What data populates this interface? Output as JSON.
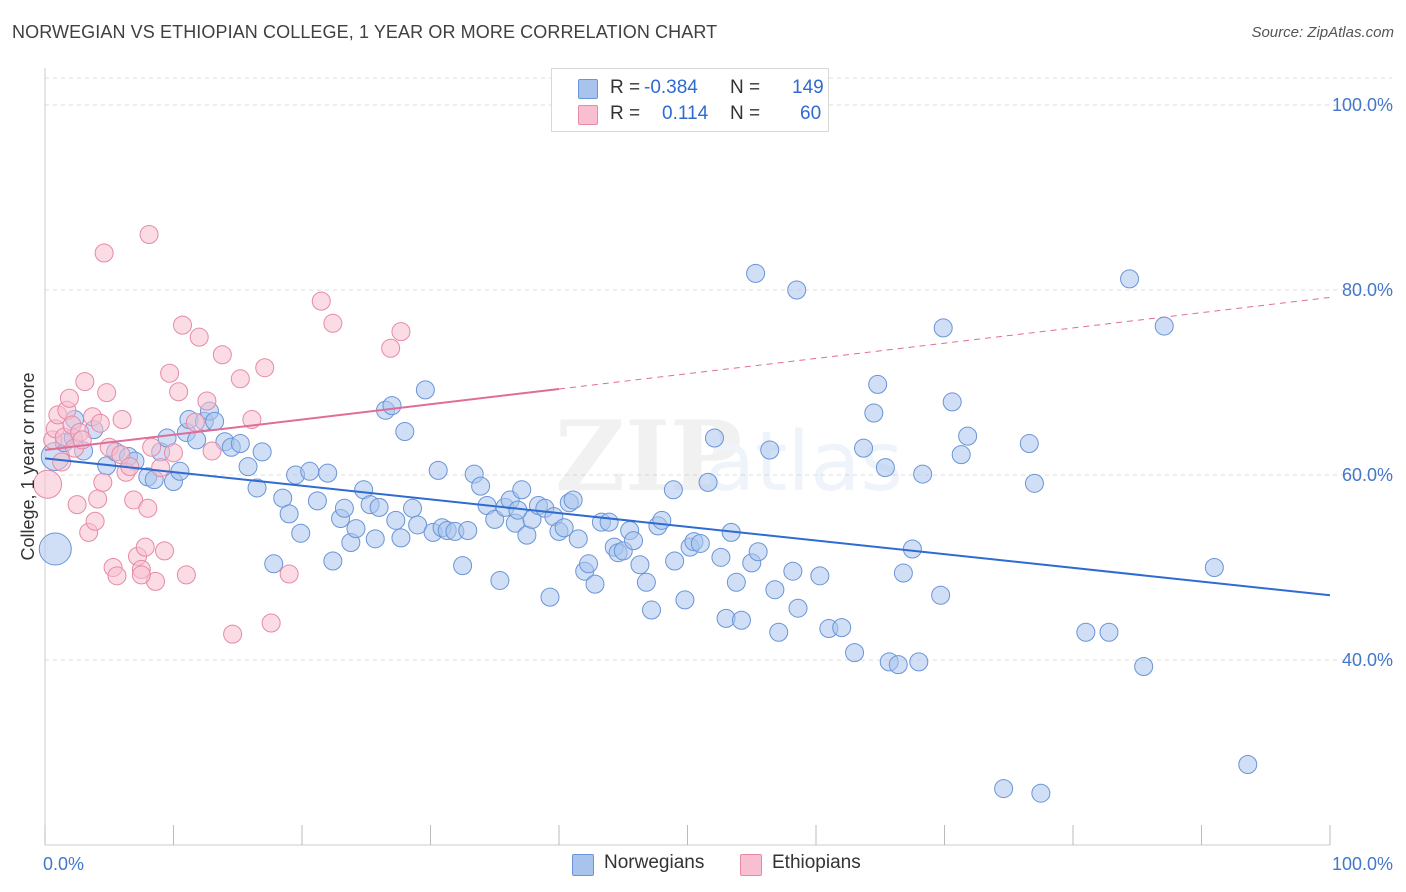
{
  "title": "NORWEGIAN VS ETHIOPIAN COLLEGE, 1 YEAR OR MORE CORRELATION CHART",
  "source": "Source: ZipAtlas.com",
  "watermark": {
    "zip": "ZIP",
    "atlas": "atlas"
  },
  "legend_stats": [
    {
      "r_label": "R =",
      "r_value": "-0.384",
      "n_label": "N =",
      "n_value": "149",
      "color": "#a9c4ec",
      "border": "#6a95d8"
    },
    {
      "r_label": "R =",
      "r_value": "0.114",
      "n_label": "N =",
      "n_value": "60",
      "color": "#f7bfd0",
      "border": "#e68aa6"
    }
  ],
  "bottom_legend": [
    {
      "label": "Norwegians",
      "color": "#a9c4ec",
      "border": "#6a95d8"
    },
    {
      "label": "Ethiopians",
      "color": "#f7bfd0",
      "border": "#e68aa6"
    }
  ],
  "chart_data": {
    "type": "scatter",
    "title": "NORWEGIAN VS ETHIOPIAN COLLEGE, 1 YEAR OR MORE CORRELATION CHART",
    "xlabel": "",
    "ylabel": "College, 1 year or more",
    "xlim": [
      0,
      100
    ],
    "ylim": [
      20,
      104
    ],
    "x_tick_labels": [
      "0.0%",
      "100.0%"
    ],
    "y_ticks": [
      40,
      60,
      80,
      100
    ],
    "y_tick_labels": [
      "40.0%",
      "60.0%",
      "80.0%",
      "100.0%"
    ],
    "grid": true,
    "series": [
      {
        "name": "Norwegians",
        "color": "#a9c4ec",
        "edge": "#6a95d8",
        "trend": {
          "x0": 0,
          "y0": 61.8,
          "x1": 100,
          "y1": 47.0,
          "color": "#2f6bd0",
          "dashed_from": null
        },
        "points": [
          [
            0.8,
            62.0,
            14
          ],
          [
            0.8,
            52.0,
            16
          ],
          [
            1.5,
            63.5,
            9
          ],
          [
            2.2,
            64.0,
            9
          ],
          [
            2.3,
            66.0,
            9
          ],
          [
            3.0,
            62.6,
            9
          ],
          [
            3.8,
            64.9,
            9
          ],
          [
            4.8,
            61.0,
            9
          ],
          [
            5.5,
            62.5,
            9
          ],
          [
            6.5,
            62.0,
            9
          ],
          [
            7.0,
            61.5,
            9
          ],
          [
            8.0,
            59.8,
            9
          ],
          [
            8.5,
            59.5,
            9
          ],
          [
            9.0,
            62.5,
            9
          ],
          [
            9.5,
            64.0,
            9
          ],
          [
            10.0,
            59.3,
            9
          ],
          [
            10.5,
            60.4,
            9
          ],
          [
            11.0,
            64.6,
            9
          ],
          [
            11.2,
            66.0,
            9
          ],
          [
            11.8,
            63.8,
            9
          ],
          [
            12.4,
            65.8,
            9
          ],
          [
            12.8,
            66.9,
            9
          ],
          [
            13.2,
            65.8,
            9
          ],
          [
            14.0,
            63.6,
            9
          ],
          [
            14.5,
            63.0,
            9
          ],
          [
            15.2,
            63.4,
            9
          ],
          [
            15.8,
            60.9,
            9
          ],
          [
            16.5,
            58.6,
            9
          ],
          [
            16.9,
            62.5,
            9
          ],
          [
            17.8,
            50.4,
            9
          ],
          [
            18.5,
            57.5,
            9
          ],
          [
            19.0,
            55.8,
            9
          ],
          [
            19.5,
            60.0,
            9
          ],
          [
            19.9,
            53.7,
            9
          ],
          [
            20.6,
            60.4,
            9
          ],
          [
            21.2,
            57.2,
            9
          ],
          [
            22.0,
            60.2,
            9
          ],
          [
            22.4,
            50.7,
            9
          ],
          [
            23.0,
            55.3,
            9
          ],
          [
            23.3,
            56.4,
            9
          ],
          [
            23.8,
            52.7,
            9
          ],
          [
            24.2,
            54.2,
            9
          ],
          [
            24.8,
            58.4,
            9
          ],
          [
            25.3,
            56.8,
            9
          ],
          [
            25.7,
            53.1,
            9
          ],
          [
            26.0,
            56.5,
            9
          ],
          [
            26.5,
            67.0,
            9
          ],
          [
            27.0,
            67.5,
            9
          ],
          [
            27.3,
            55.1,
            9
          ],
          [
            27.7,
            53.2,
            9
          ],
          [
            28.0,
            64.7,
            9
          ],
          [
            28.6,
            56.4,
            9
          ],
          [
            29.0,
            54.6,
            9
          ],
          [
            29.6,
            69.2,
            9
          ],
          [
            30.2,
            53.8,
            9
          ],
          [
            30.6,
            60.5,
            9
          ],
          [
            30.9,
            54.3,
            9
          ],
          [
            31.3,
            54.0,
            9
          ],
          [
            31.9,
            53.9,
            9
          ],
          [
            32.5,
            50.2,
            9
          ],
          [
            32.9,
            54.0,
            9
          ],
          [
            33.4,
            60.1,
            9
          ],
          [
            33.9,
            58.8,
            9
          ],
          [
            34.4,
            56.7,
            9
          ],
          [
            35.0,
            55.2,
            9
          ],
          [
            35.4,
            48.6,
            9
          ],
          [
            35.8,
            56.5,
            9
          ],
          [
            36.2,
            57.3,
            9
          ],
          [
            36.6,
            54.8,
            9
          ],
          [
            37.1,
            58.4,
            9
          ],
          [
            37.5,
            53.5,
            9
          ],
          [
            37.9,
            55.2,
            9
          ],
          [
            38.4,
            56.7,
            9
          ],
          [
            38.9,
            56.4,
            9
          ],
          [
            39.3,
            46.8,
            9
          ],
          [
            39.6,
            55.5,
            9
          ],
          [
            40.0,
            53.9,
            9
          ],
          [
            40.4,
            54.3,
            9
          ],
          [
            40.8,
            57.0,
            9
          ],
          [
            41.1,
            57.3,
            9
          ],
          [
            41.5,
            53.1,
            9
          ],
          [
            42.0,
            49.6,
            9
          ],
          [
            42.3,
            50.4,
            9
          ],
          [
            42.8,
            48.2,
            9
          ],
          [
            43.3,
            54.9,
            9
          ],
          [
            43.9,
            54.9,
            9
          ],
          [
            44.3,
            52.2,
            9
          ],
          [
            44.6,
            51.6,
            9
          ],
          [
            45.0,
            51.8,
            9
          ],
          [
            45.5,
            54.0,
            9
          ],
          [
            45.8,
            52.9,
            9
          ],
          [
            46.3,
            50.3,
            9
          ],
          [
            46.8,
            48.4,
            9
          ],
          [
            47.2,
            45.4,
            9
          ],
          [
            47.7,
            54.5,
            9
          ],
          [
            48.0,
            55.1,
            9
          ],
          [
            48.9,
            58.4,
            9
          ],
          [
            49.0,
            50.7,
            9
          ],
          [
            49.8,
            46.5,
            9
          ],
          [
            50.2,
            52.2,
            9
          ],
          [
            50.5,
            52.8,
            9
          ],
          [
            51.0,
            52.6,
            9
          ],
          [
            51.6,
            59.2,
            9
          ],
          [
            52.1,
            64.0,
            9
          ],
          [
            52.6,
            51.1,
            9
          ],
          [
            53.0,
            44.5,
            9
          ],
          [
            53.4,
            53.8,
            9
          ],
          [
            53.8,
            48.4,
            9
          ],
          [
            54.2,
            44.3,
            9
          ],
          [
            55.0,
            50.5,
            9
          ],
          [
            55.5,
            51.7,
            9
          ],
          [
            56.4,
            62.7,
            9
          ],
          [
            56.8,
            47.6,
            9
          ],
          [
            57.1,
            43.0,
            9
          ],
          [
            58.2,
            49.6,
            9
          ],
          [
            58.6,
            45.6,
            9
          ],
          [
            60.3,
            49.1,
            9
          ],
          [
            61.0,
            43.4,
            9
          ],
          [
            62.0,
            43.5,
            9
          ],
          [
            63.0,
            40.8,
            9
          ],
          [
            63.7,
            62.9,
            9
          ],
          [
            64.5,
            66.7,
            9
          ],
          [
            64.8,
            69.8,
            9
          ],
          [
            65.4,
            60.8,
            9
          ],
          [
            65.7,
            39.8,
            9
          ],
          [
            66.4,
            39.5,
            9
          ],
          [
            66.8,
            49.4,
            9
          ],
          [
            67.5,
            52.0,
            9
          ],
          [
            68.0,
            39.8,
            9
          ],
          [
            68.3,
            60.1,
            9
          ],
          [
            69.7,
            47.0,
            9
          ],
          [
            69.9,
            75.9,
            9
          ],
          [
            70.6,
            67.9,
            9
          ],
          [
            71.3,
            62.2,
            9
          ],
          [
            71.8,
            64.2,
            9
          ],
          [
            76.6,
            63.4,
            9
          ],
          [
            77.0,
            59.1,
            9
          ],
          [
            81.0,
            43.0,
            9
          ],
          [
            82.8,
            43.0,
            9
          ],
          [
            84.4,
            81.2,
            9
          ],
          [
            85.5,
            39.3,
            9
          ],
          [
            87.1,
            76.1,
            9
          ],
          [
            91.0,
            50.0,
            9
          ],
          [
            93.6,
            28.7,
            9
          ],
          [
            77.5,
            25.6,
            9
          ],
          [
            74.6,
            26.1,
            9
          ],
          [
            55.3,
            81.8,
            9
          ],
          [
            58.5,
            80.0,
            9
          ],
          [
            36.8,
            56.2,
            9
          ]
        ]
      },
      {
        "name": "Ethiopians",
        "color": "#f7bfd0",
        "edge": "#e68aa6",
        "trend": {
          "x0": 0,
          "y0": 62.7,
          "x1": 100,
          "y1": 79.2,
          "color": "#e06d97",
          "dashed_from": 40.0
        },
        "points": [
          [
            0.2,
            59.0,
            14
          ],
          [
            0.6,
            63.8,
            9
          ],
          [
            0.8,
            65.0,
            9
          ],
          [
            1.0,
            66.5,
            9
          ],
          [
            1.3,
            61.4,
            9
          ],
          [
            1.5,
            64.1,
            9
          ],
          [
            1.7,
            67.0,
            9
          ],
          [
            1.9,
            68.3,
            9
          ],
          [
            2.1,
            65.4,
            9
          ],
          [
            2.3,
            62.9,
            9
          ],
          [
            2.5,
            56.8,
            9
          ],
          [
            2.7,
            64.6,
            9
          ],
          [
            2.9,
            63.8,
            9
          ],
          [
            3.1,
            70.1,
            9
          ],
          [
            3.4,
            53.8,
            9
          ],
          [
            3.7,
            66.3,
            9
          ],
          [
            3.9,
            55.0,
            9
          ],
          [
            4.1,
            57.4,
            9
          ],
          [
            4.3,
            65.6,
            9
          ],
          [
            4.5,
            59.2,
            9
          ],
          [
            4.8,
            68.9,
            9
          ],
          [
            5.0,
            63.0,
            9
          ],
          [
            5.3,
            50.0,
            9
          ],
          [
            5.6,
            49.1,
            9
          ],
          [
            5.9,
            62.2,
            9
          ],
          [
            6.0,
            66.0,
            9
          ],
          [
            6.3,
            60.3,
            9
          ],
          [
            6.6,
            60.9,
            9
          ],
          [
            6.9,
            57.3,
            9
          ],
          [
            7.2,
            51.2,
            9
          ],
          [
            7.5,
            49.8,
            9
          ],
          [
            7.8,
            52.2,
            9
          ],
          [
            8.0,
            56.4,
            9
          ],
          [
            8.3,
            63.0,
            9
          ],
          [
            8.6,
            48.5,
            9
          ],
          [
            9.0,
            60.8,
            9
          ],
          [
            9.3,
            51.8,
            9
          ],
          [
            9.7,
            71.0,
            9
          ],
          [
            10.0,
            62.4,
            9
          ],
          [
            10.4,
            69.0,
            9
          ],
          [
            11.0,
            49.2,
            9
          ],
          [
            11.7,
            65.7,
            9
          ],
          [
            12.0,
            74.9,
            9
          ],
          [
            12.6,
            68.0,
            9
          ],
          [
            13.0,
            62.6,
            9
          ],
          [
            13.8,
            73.0,
            9
          ],
          [
            14.6,
            42.8,
            9
          ],
          [
            15.2,
            70.4,
            9
          ],
          [
            16.1,
            66.0,
            9
          ],
          [
            17.1,
            71.6,
            9
          ],
          [
            17.6,
            44.0,
            9
          ],
          [
            19.0,
            49.3,
            9
          ],
          [
            21.5,
            78.8,
            9
          ],
          [
            22.4,
            76.4,
            9
          ],
          [
            26.9,
            73.7,
            9
          ],
          [
            27.7,
            75.5,
            9
          ],
          [
            4.6,
            84.0,
            9
          ],
          [
            8.1,
            86.0,
            9
          ],
          [
            10.7,
            76.2,
            9
          ],
          [
            7.5,
            49.2,
            9
          ]
        ]
      }
    ]
  }
}
